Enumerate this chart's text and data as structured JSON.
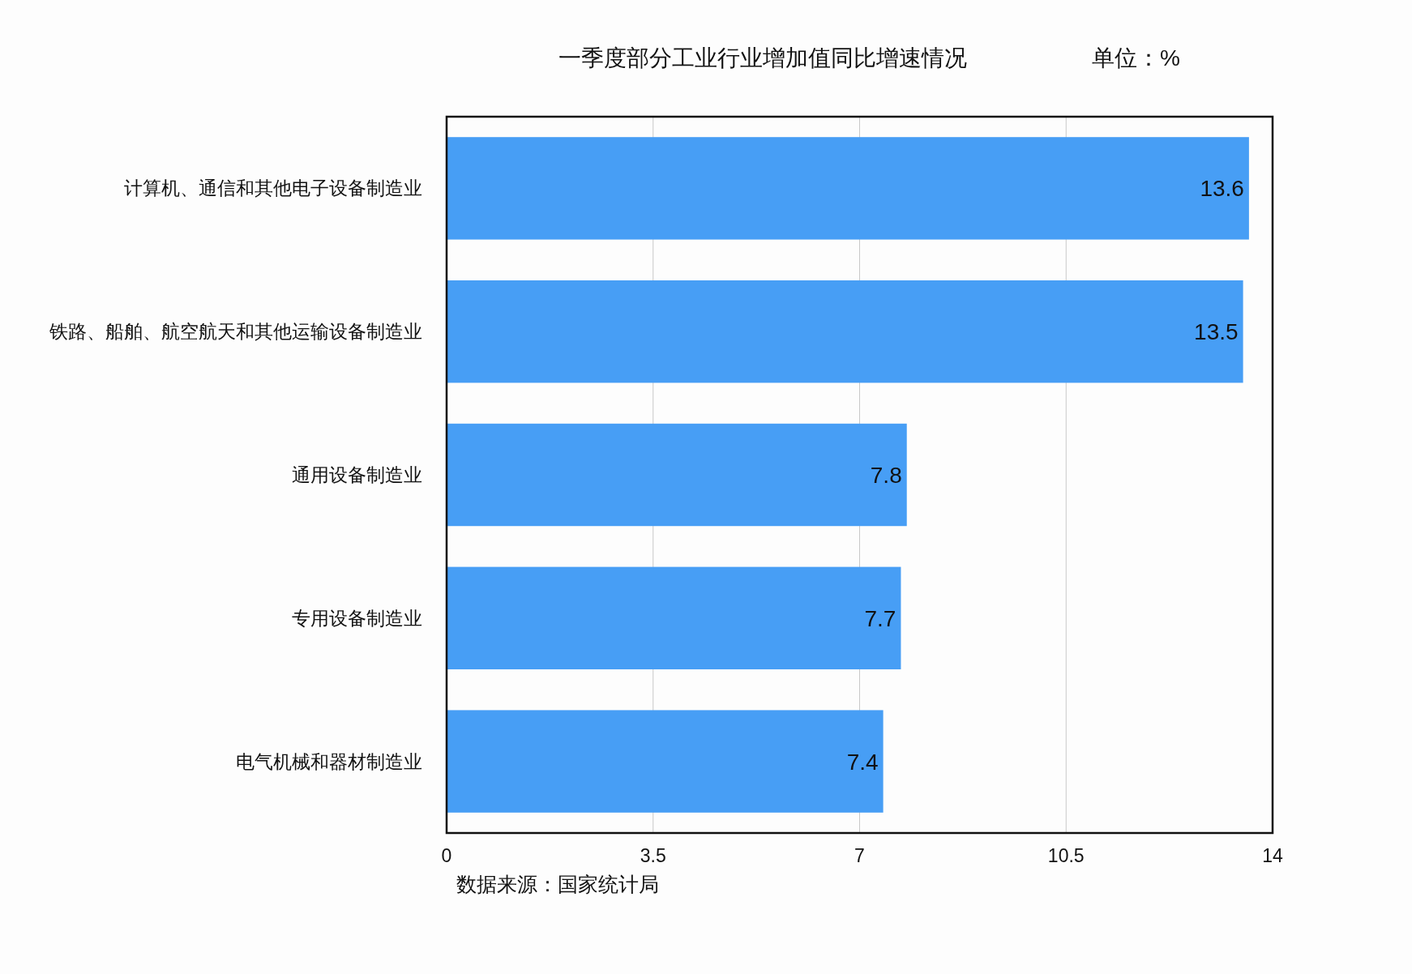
{
  "chart_data": {
    "type": "bar",
    "orientation": "horizontal",
    "title": "一季度部分工业行业增加值同比增速情况",
    "subtitle": "单位：%",
    "categories": [
      "计算机、通信和其他电子设备制造业",
      "铁路、船舶、航空航天和其他运输设备制造业",
      "通用设备制造业",
      "专用设备制造业",
      "电气机械和器材制造业"
    ],
    "values": [
      13.6,
      13.5,
      7.8,
      7.7,
      7.4
    ],
    "color": "#479ef5",
    "xlim": [
      0,
      14
    ],
    "xticks": [
      0,
      3.5,
      7,
      10.5,
      14
    ],
    "grid": "x",
    "data_labels": true,
    "annotations": [
      "数据来源：国家统计局"
    ]
  }
}
